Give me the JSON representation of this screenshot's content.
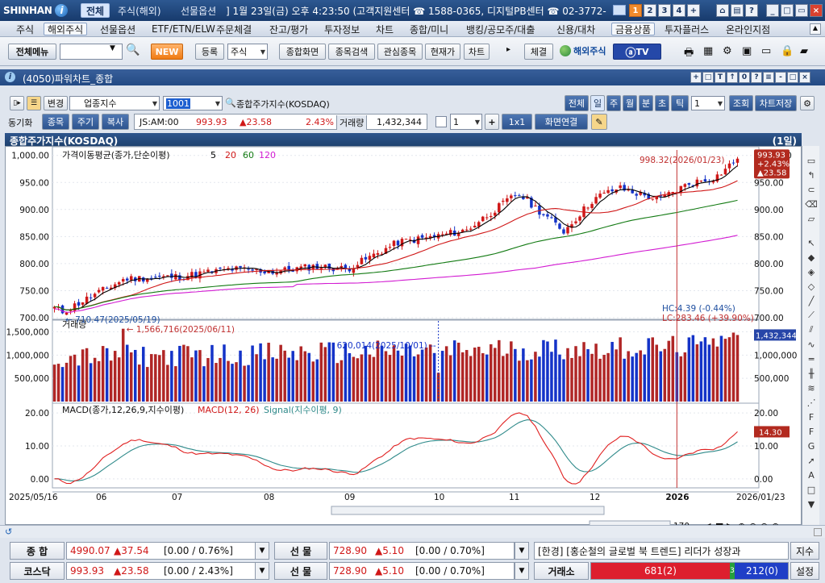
{
  "app": {
    "brand": "SHINHAN",
    "brand_mark": "i"
  },
  "titlebar": {
    "tabs": [
      "전체",
      "주식(해외)",
      "선물옵션"
    ],
    "clock_text": "] 1월 23일(금) 오후 4:23:50 (고객지원센터 ☎ 1588-0365, 디지털PB센터 ☎ 02-3772-",
    "screen_buttons": [
      "1",
      "2",
      "3",
      "4",
      "+"
    ]
  },
  "menubar": {
    "items": [
      "주식",
      "해외주식",
      "선물옵션",
      "ETF/ETN/ELW",
      "주문체결",
      "잔고/평가",
      "투자정보",
      "차트",
      "종합/미니",
      "뱅킹/공모주/대출",
      "신용/대차",
      "금융상품",
      "투자플러스",
      "온라인지점"
    ]
  },
  "toolbar": {
    "all_menu": "전체메뉴",
    "new_badge": "NEW",
    "register": "등록",
    "market_select": "주식",
    "buttons": [
      "종합화면",
      "종목검색",
      "관심종목",
      "현재가",
      "차트"
    ],
    "contract": "체결",
    "overseas": "해외주식",
    "tv_label": "TV"
  },
  "window": {
    "title": "(4050)파워차트_종합",
    "win_buttons": [
      "+",
      "□",
      "T",
      "↑",
      "0",
      "?",
      "≡",
      "-",
      "□",
      "×"
    ]
  },
  "controls": {
    "change_label": "변경",
    "category": "업종지수",
    "code": "1001",
    "index_name": "종합주가지수(KOSDAQ)",
    "period_tabs": [
      "전체",
      "일",
      "주",
      "월",
      "분",
      "초",
      "틱"
    ],
    "period_count": "1",
    "query": "조회",
    "save_chart": "차트저장",
    "sync_label": "동기화",
    "sync_tabs": [
      "종목",
      "주기",
      "복사"
    ],
    "quote_time": "JS:AM:00",
    "price": "993.93",
    "change": "▲23.58",
    "change_pct": "2.43%",
    "volume_label": "거래량",
    "volume": "1,432,344",
    "layout_count": "1",
    "layout_ratio": "1x1",
    "screen_link": "화면연결"
  },
  "chart": {
    "header_title": "종합주가지수(KOSDAQ)",
    "header_period": "(1일)",
    "ma_label": "가격이동평균(종가,단순이평)",
    "ma_periods": [
      "5",
      "20",
      "60",
      "120"
    ],
    "ma_colors": [
      "#000000",
      "#d01818",
      "#127a12",
      "#d21bd2"
    ],
    "price_hi_label": "998.32(2026/01/23)",
    "price_lo_label": "710.47(2025/05/19)",
    "price_tag": [
      "993.93",
      "+2.43%",
      "▲23.58"
    ],
    "hc_label": "HC:4.39 (-0.44%)",
    "lc_label": "LC:283.46 (+39.90%)",
    "price_axis": [
      "1,000.00",
      "950.00",
      "900.00",
      "850.00",
      "800.00",
      "750.00",
      "700.00"
    ],
    "volume_title": "거래량",
    "vol_peak_label": "1,566,716(2025/06/11)",
    "vol_mark_label": "620,014(2025/10/01)",
    "vol_tag": "1,432,344",
    "volume_axis": [
      "1,500,000",
      "1,000,000",
      "500,000"
    ],
    "macd_title": "MACD(종가,12,26,9,지수이평)",
    "macd_line_label": "MACD(12, 26)",
    "signal_label": "Signal(지수이평, 9)",
    "macd_tag": "14.30",
    "macd_axis": [
      "20.00",
      "10.00",
      "0.00"
    ],
    "x_axis": [
      "2025/05/16",
      "06",
      "07",
      "08",
      "09",
      "10",
      "11",
      "12",
      "2026",
      "2026/01/23"
    ],
    "zoom_value": "170"
  },
  "chart_data": {
    "type": "candlestick",
    "title": "종합주가지수(KOSDAQ)",
    "price_range": [
      700,
      1010
    ],
    "volume_range": [
      0,
      1700000
    ],
    "macd_range": [
      -2,
      22
    ],
    "price_anchor_points": [
      {
        "date": "2025/05/16",
        "close": 718
      },
      {
        "date": "2025/05/19",
        "close": 711
      },
      {
        "date": "2025/06/11",
        "close": 772
      },
      {
        "date": "2025/07/01",
        "close": 776
      },
      {
        "date": "2025/07/20",
        "close": 790
      },
      {
        "date": "2025/08/05",
        "close": 785
      },
      {
        "date": "2025/08/20",
        "close": 795
      },
      {
        "date": "2025/09/01",
        "close": 790
      },
      {
        "date": "2025/09/20",
        "close": 840
      },
      {
        "date": "2025/10/01",
        "close": 848
      },
      {
        "date": "2025/10/15",
        "close": 862
      },
      {
        "date": "2025/11/03",
        "close": 930
      },
      {
        "date": "2025/11/20",
        "close": 860
      },
      {
        "date": "2025/12/01",
        "close": 920
      },
      {
        "date": "2025/12/10",
        "close": 940
      },
      {
        "date": "2025/12/25",
        "close": 918
      },
      {
        "date": "2026/01/05",
        "close": 948
      },
      {
        "date": "2026/01/15",
        "close": 960
      },
      {
        "date": "2026/01/23",
        "close": 993.93
      }
    ],
    "volume_highlights": [
      {
        "date": "2025/06/11",
        "volume": 1566716
      },
      {
        "date": "2025/10/01",
        "volume": 620014
      },
      {
        "date": "2026/01/23",
        "volume": 1432344
      }
    ],
    "macd_last": 14.3
  },
  "chart_bottom": {
    "status_icon": "↺"
  },
  "ticker": {
    "rows": [
      {
        "label": "종 합",
        "value": "4990.07",
        "change": "▲37.54",
        "range": "[0.00 / 0.76%]",
        "fut_label": "선 물",
        "fut_value": "728.90",
        "fut_change": "▲5.10",
        "fut_range": "[0.00 / 0.70%]",
        "news": "[한경] [홍순철의 글로벌 북 트렌드] 리더가 성장과",
        "side": "지수"
      },
      {
        "label": "코스닥",
        "value": "993.93",
        "change": "▲23.58",
        "range": "[0.00 / 2.43%]",
        "fut_label": "선 물",
        "fut_value": "728.90",
        "fut_change": "▲5.10",
        "fut_range": "[0.00 / 0.70%]",
        "exchange": "거래소",
        "bar_left": "681(2)",
        "bar_mid": "3",
        "bar_right": "212(0)",
        "side": "설정"
      }
    ]
  }
}
